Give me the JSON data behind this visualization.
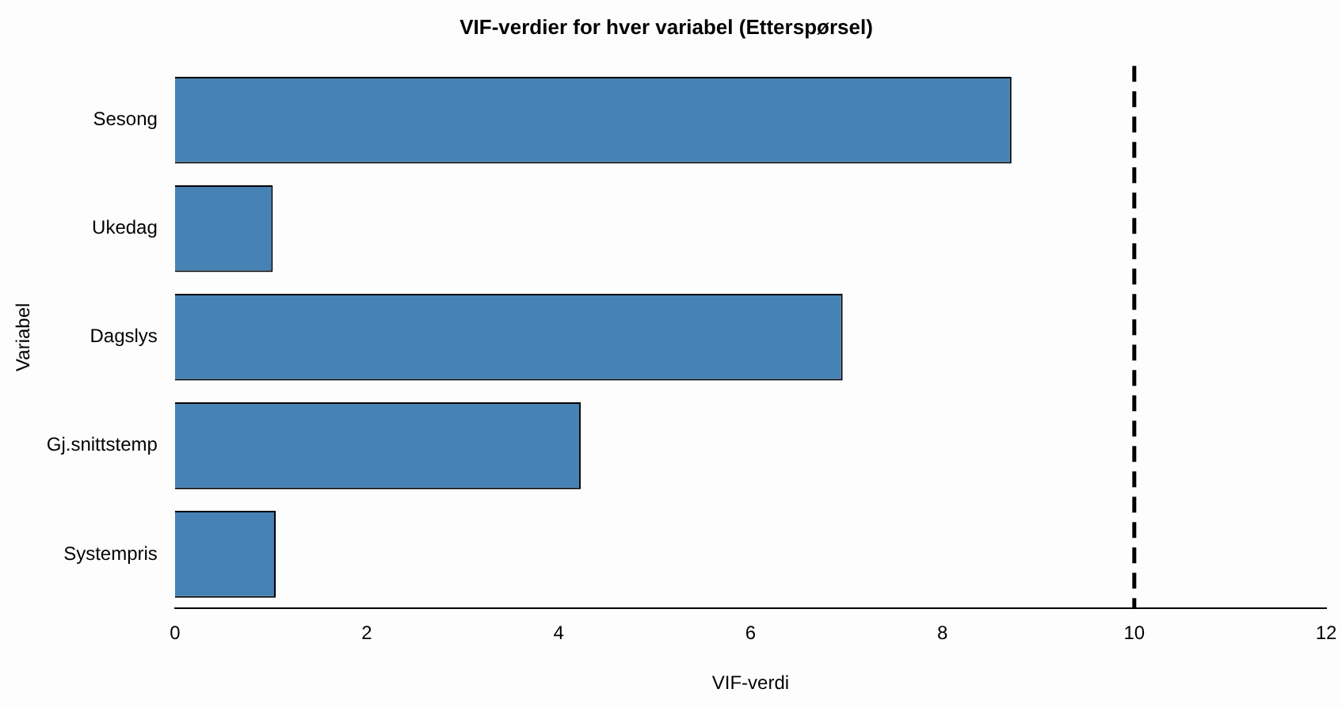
{
  "chart_data": {
    "type": "bar",
    "orientation": "horizontal",
    "title": "VIF-verdier for hver variabel (Etterspørsel)",
    "xlabel": "VIF-verdi",
    "ylabel": "Variabel",
    "categories": [
      "Sesong",
      "Ukedag",
      "Dagslys",
      "Gj.snittstemp",
      "Systempris"
    ],
    "values": [
      8.72,
      1.02,
      6.96,
      4.23,
      1.05
    ],
    "color": "#4682b4",
    "xlim": [
      0,
      12
    ],
    "xticks": [
      0,
      2,
      4,
      6,
      8,
      10,
      12
    ],
    "grid": false,
    "legend": false,
    "ref_lines": [
      {
        "axis": "x",
        "value": 10,
        "color": "#000000",
        "line_style": "dashed"
      }
    ]
  }
}
